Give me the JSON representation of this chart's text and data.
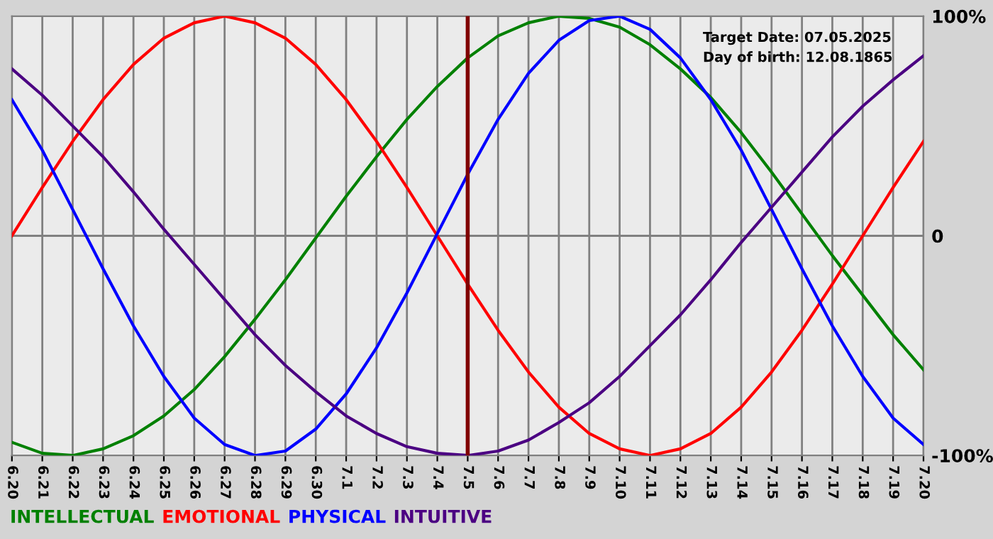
{
  "chart_data": {
    "type": "line",
    "categories": [
      "6.20",
      "6.21",
      "6.22",
      "6.23",
      "6.24",
      "6.25",
      "6.26",
      "6.27",
      "6.28",
      "6.29",
      "6.30",
      "7.1",
      "7.2",
      "7.3",
      "7.4",
      "7.5",
      "7.6",
      "7.7",
      "7.8",
      "7.9",
      "7.10",
      "7.11",
      "7.12",
      "7.13",
      "7.14",
      "7.15",
      "7.16",
      "7.17",
      "7.18",
      "7.19",
      "7.20"
    ],
    "series": [
      {
        "name": "INTELLECTUAL",
        "color": "#008000",
        "values": [
          -94,
          -99,
          -100,
          -97,
          -91,
          -82,
          -70,
          -55,
          -38,
          -20,
          -1,
          18,
          36,
          53,
          68,
          81,
          91,
          97,
          100,
          99,
          95,
          87,
          76,
          63,
          47,
          29,
          10,
          -9,
          -27,
          -45,
          -61
        ]
      },
      {
        "name": "EMOTIONAL",
        "color": "#ff0000",
        "values": [
          0,
          22,
          43,
          62,
          78,
          90,
          97,
          100,
          97,
          90,
          78,
          62,
          43,
          22,
          0,
          -22,
          -43,
          -62,
          -78,
          -90,
          -97,
          -100,
          -97,
          -90,
          -78,
          -62,
          -43,
          -22,
          0,
          22,
          43
        ]
      },
      {
        "name": "PHYSICAL",
        "color": "#0000ff",
        "values": [
          62,
          39,
          12,
          -15,
          -41,
          -64,
          -83,
          -95,
          -100,
          -98,
          -88,
          -72,
          -51,
          -26,
          1,
          28,
          53,
          74,
          89,
          98,
          100,
          94,
          81,
          62,
          39,
          12,
          -15,
          -41,
          -64,
          -83,
          -95
        ]
      },
      {
        "name": "INTUITIVE",
        "color": "#4b0082",
        "values": [
          76,
          64,
          50,
          36,
          20,
          3,
          -13,
          -29,
          -45,
          -59,
          -71,
          -82,
          -90,
          -96,
          -99,
          -100,
          -98,
          -93,
          -85,
          -76,
          -64,
          -50,
          -36,
          -20,
          -3,
          13,
          29,
          45,
          59,
          71,
          82
        ]
      }
    ],
    "ylim": [
      -100,
      100
    ],
    "yticks": [
      {
        "value": 100,
        "label": "100%"
      },
      0,
      {
        "value": -100,
        "label": "-100%"
      }
    ],
    "ref_lines": [
      {
        "axis": "x",
        "value": "7.5",
        "color": "#800000"
      },
      {
        "axis": "y",
        "value": 0,
        "color": "#808080"
      }
    ],
    "grid": "x",
    "legend": "bottom",
    "annotations": [
      "Target Date: 07.05.2025",
      "Day of birth: 12.08.1865"
    ]
  }
}
